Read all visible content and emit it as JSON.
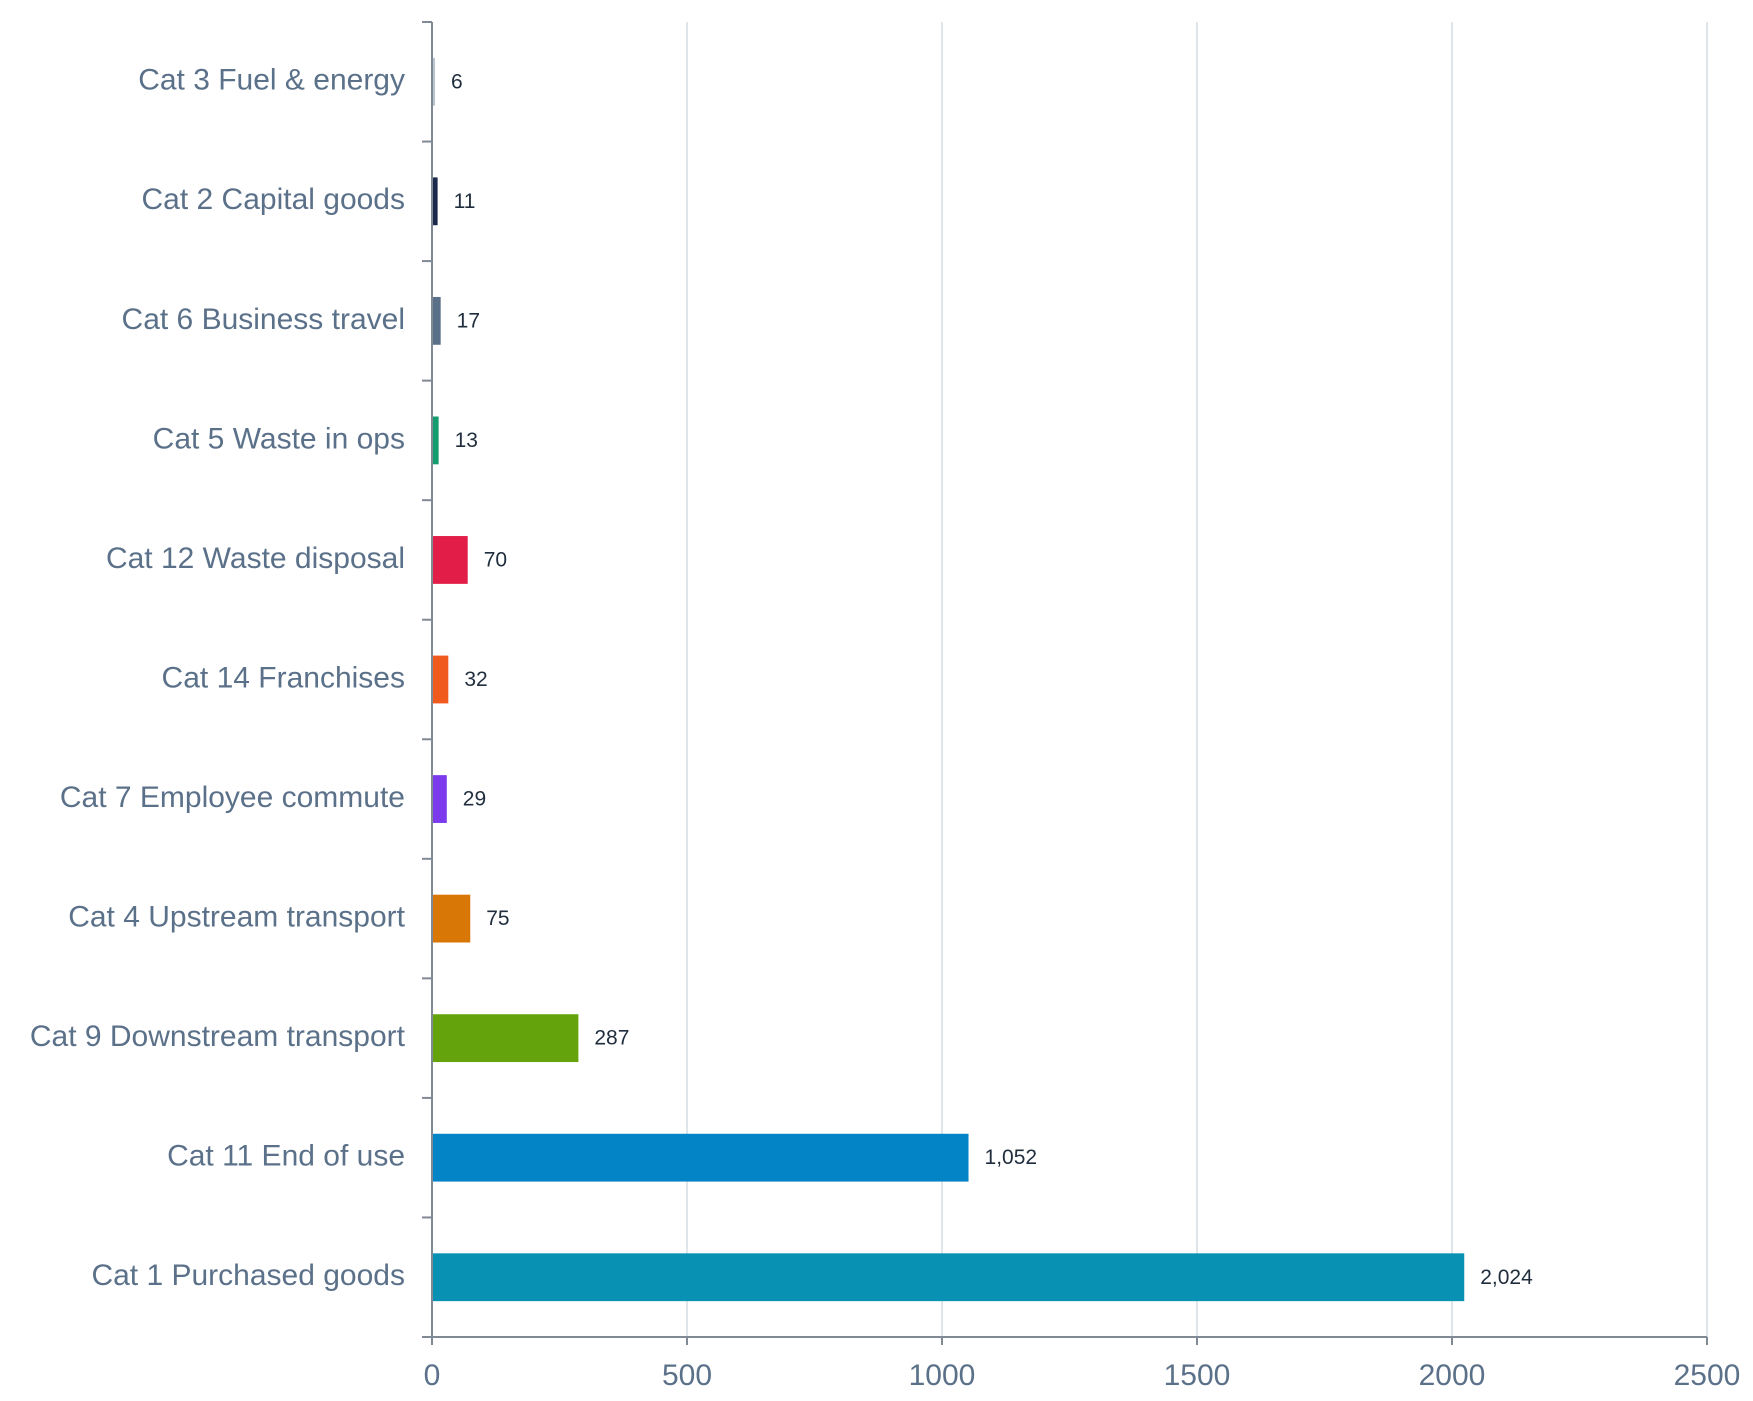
{
  "chart_data": {
    "type": "bar",
    "orientation": "horizontal",
    "categories": [
      "Cat 3 Fuel & energy",
      "Cat 2 Capital goods",
      "Cat 6 Business travel",
      "Cat 5 Waste in ops",
      "Cat 12 Waste disposal",
      "Cat 14 Franchises",
      "Cat 7 Employee commute",
      "Cat 4 Upstream transport",
      "Cat 9 Downstream transport",
      "Cat 11 End of use",
      "Cat 1 Purchased goods"
    ],
    "values": [
      6,
      11,
      17,
      13,
      70,
      32,
      29,
      75,
      287,
      1052,
      2024
    ],
    "value_labels": [
      "6",
      "11",
      "17",
      "13",
      "70",
      "32",
      "29",
      "75",
      "287",
      "1,052",
      "2,024"
    ],
    "colors": [
      "#b9c6d0",
      "#1b2a4a",
      "#5a7089",
      "#139d6e",
      "#e11d48",
      "#f05a1c",
      "#7c3aed",
      "#d97706",
      "#65a30d",
      "#0284c7",
      "#0891b2"
    ],
    "xlim": [
      0,
      2500
    ],
    "xticks": [
      0,
      500,
      1000,
      1500,
      2000,
      2500
    ],
    "grid": true
  }
}
